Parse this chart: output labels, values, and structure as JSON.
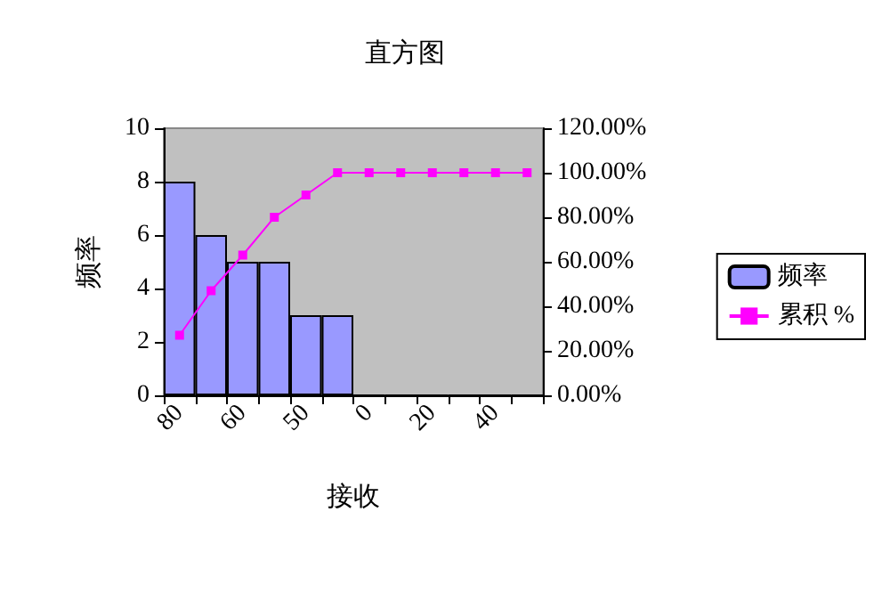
{
  "chart_data": {
    "type": "bar",
    "title": "直方图",
    "xlabel": "接收",
    "ylabel": "频率",
    "categories": [
      "80",
      null,
      "60",
      null,
      "50",
      null,
      "0",
      null,
      "20",
      null,
      "40",
      null
    ],
    "series": [
      {
        "name": "频率",
        "color": "#9999ff",
        "values": [
          8,
          6,
          5,
          5,
          3,
          3,
          0,
          0,
          0,
          0,
          0,
          0
        ]
      },
      {
        "name": "累积 %",
        "type": "line",
        "axis": "y2",
        "color": "#ff00ff",
        "marker": "square",
        "values": [
          27,
          47,
          63,
          80,
          90,
          100,
          100,
          100,
          100,
          100,
          100,
          100
        ]
      }
    ],
    "ylim": [
      0,
      10
    ],
    "yticks": [
      0,
      2,
      4,
      6,
      8,
      10
    ],
    "y2lim": [
      0,
      120
    ],
    "y2ticks": [
      {
        "value": 0,
        "label": "0.00%"
      },
      {
        "value": 20,
        "label": "20.00%"
      },
      {
        "value": 40,
        "label": "40.00%"
      },
      {
        "value": 60,
        "label": "60.00%"
      },
      {
        "value": 80,
        "label": "80.00%"
      },
      {
        "value": 100,
        "label": "100.00%"
      },
      {
        "value": 120,
        "label": "120.00%"
      }
    ],
    "grid": false,
    "legend": "right"
  }
}
